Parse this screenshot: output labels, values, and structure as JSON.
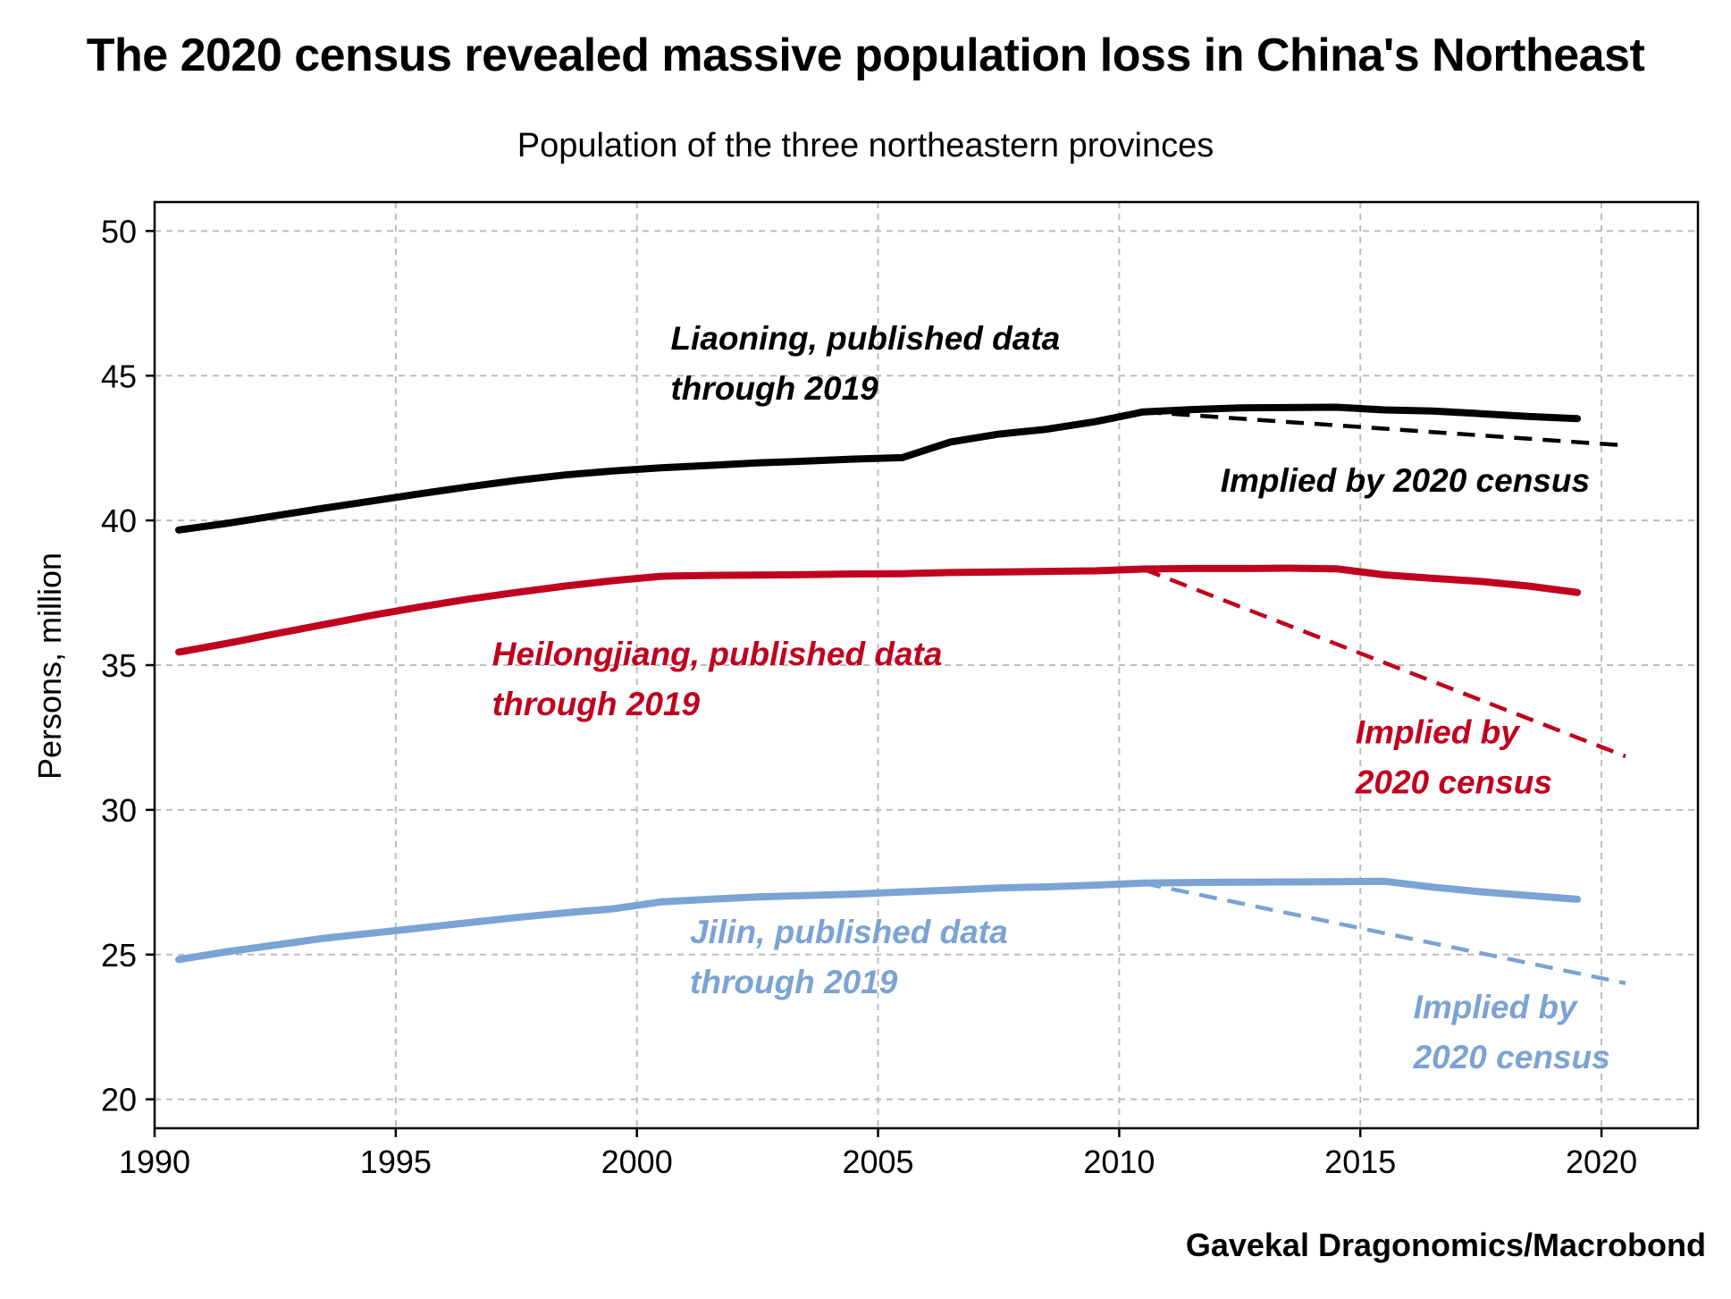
{
  "chart_data": {
    "type": "line",
    "title": "The 2020 census revealed massive population loss in China's Northeast",
    "subtitle": "Population of the three northeastern provinces",
    "ylabel": "Persons, million",
    "xlabel": "",
    "source": "Gavekal Dragonomics/Macrobond",
    "xlim": [
      1990,
      2022
    ],
    "ylim": [
      19,
      51
    ],
    "x_ticks": [
      1990,
      1995,
      2000,
      2005,
      2010,
      2015,
      2020
    ],
    "y_ticks": [
      20,
      25,
      30,
      35,
      40,
      45,
      50
    ],
    "grid": true,
    "series": [
      {
        "name": "Liaoning, published data through 2019",
        "color": "#000000",
        "style": "solid",
        "x": [
          1990.5,
          1991.5,
          1992.5,
          1993.5,
          1994.5,
          1995.5,
          1996.5,
          1997.5,
          1998.5,
          1999.5,
          2000.5,
          2001.5,
          2002.5,
          2003.5,
          2004.5,
          2005.5,
          2006.5,
          2007.5,
          2008.5,
          2009.5,
          2010.5,
          2011.5,
          2012.5,
          2013.5,
          2014.5,
          2015.5,
          2016.5,
          2017.5,
          2018.5,
          2019.5
        ],
        "y": [
          39.67,
          39.9,
          40.16,
          40.42,
          40.67,
          40.92,
          41.16,
          41.38,
          41.57,
          41.71,
          41.82,
          41.9,
          41.99,
          42.05,
          42.12,
          42.17,
          42.71,
          42.98,
          43.15,
          43.41,
          43.75,
          43.83,
          43.89,
          43.9,
          43.91,
          43.82,
          43.78,
          43.69,
          43.59,
          43.52
        ]
      },
      {
        "name": "Implied by 2020 census",
        "color": "#000000",
        "style": "dashed",
        "x": [
          2010.5,
          2020.5
        ],
        "y": [
          43.75,
          42.59
        ]
      },
      {
        "name": "Heilongjiang, published data through 2019",
        "color": "#c0001f",
        "style": "solid",
        "x": [
          1990.5,
          1991.5,
          1992.5,
          1993.5,
          1994.5,
          1995.5,
          1996.5,
          1997.5,
          1998.5,
          1999.5,
          2000.5,
          2001.5,
          2002.5,
          2003.5,
          2004.5,
          2005.5,
          2006.5,
          2007.5,
          2008.5,
          2009.5,
          2010.5,
          2011.5,
          2012.5,
          2013.5,
          2014.5,
          2015.5,
          2016.5,
          2017.5,
          2018.5,
          2019.5
        ],
        "y": [
          35.45,
          35.75,
          36.08,
          36.4,
          36.72,
          37.01,
          37.28,
          37.51,
          37.73,
          37.92,
          38.07,
          38.1,
          38.11,
          38.13,
          38.15,
          38.16,
          38.2,
          38.22,
          38.24,
          38.26,
          38.32,
          38.34,
          38.34,
          38.35,
          38.33,
          38.12,
          38.0,
          37.89,
          37.73,
          37.51
        ]
      },
      {
        "name": "Implied by 2020 census",
        "color": "#c0001f",
        "style": "dashed",
        "x": [
          2010.5,
          2020.5
        ],
        "y": [
          38.32,
          31.85
        ]
      },
      {
        "name": "Jilin, published data through 2019",
        "color": "#7ba3d3",
        "style": "solid",
        "x": [
          1990.5,
          1991.5,
          1992.5,
          1993.5,
          1994.5,
          1995.5,
          1996.5,
          1997.5,
          1998.5,
          1999.5,
          2000.5,
          2001.5,
          2002.5,
          2003.5,
          2004.5,
          2005.5,
          2006.5,
          2007.5,
          2008.5,
          2009.5,
          2010.5,
          2011.5,
          2012.5,
          2013.5,
          2014.5,
          2015.5,
          2016.5,
          2017.5,
          2018.5,
          2019.5
        ],
        "y": [
          24.83,
          25.1,
          25.33,
          25.56,
          25.74,
          25.92,
          26.1,
          26.28,
          26.44,
          26.58,
          26.82,
          26.91,
          26.99,
          27.04,
          27.09,
          27.16,
          27.23,
          27.3,
          27.34,
          27.4,
          27.47,
          27.49,
          27.5,
          27.51,
          27.52,
          27.53,
          27.33,
          27.17,
          27.04,
          26.91
        ]
      },
      {
        "name": "Implied by 2020 census",
        "color": "#7ba3d3",
        "style": "dashed",
        "x": [
          2010.5,
          2020.5
        ],
        "y": [
          27.47,
          24.01
        ]
      }
    ],
    "annotations": [
      {
        "lines": [
          "Liaoning, published data",
          "through 2019"
        ],
        "color": "#000000",
        "x": 2000.7,
        "y": 45.9
      },
      {
        "lines": [
          "Implied by 2020 census"
        ],
        "color": "#000000",
        "x": 2012.1,
        "y": 41.0
      },
      {
        "lines": [
          "Heilongjiang, published data",
          "through 2019"
        ],
        "color": "#c0001f",
        "x": 1997.0,
        "y": 35.0
      },
      {
        "lines": [
          "Implied by",
          "2020 census"
        ],
        "color": "#c0001f",
        "x": 2014.9,
        "y": 32.3
      },
      {
        "lines": [
          "Jilin, published data",
          "through 2019"
        ],
        "color": "#7ba3d3",
        "x": 2001.1,
        "y": 25.4
      },
      {
        "lines": [
          "Implied by",
          "2020 census"
        ],
        "color": "#7ba3d3",
        "x": 2016.1,
        "y": 22.8
      }
    ]
  }
}
